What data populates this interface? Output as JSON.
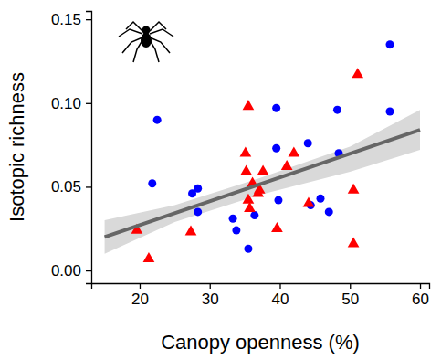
{
  "chart_data": {
    "type": "scatter",
    "x_label": "Canopy openness (%)",
    "y_label": "Isotopic richness",
    "xlim": [
      13.1,
      61.3
    ],
    "ylim": [
      -0.0076,
      0.155
    ],
    "xticks": [
      20,
      30,
      40,
      50,
      60
    ],
    "yticks": [
      {
        "value": 0,
        "label": "0.00"
      },
      {
        "value": 0.05,
        "label": "0.05"
      },
      {
        "value": 0.1,
        "label": "0.10"
      },
      {
        "value": 0.15,
        "label": "0.15"
      }
    ],
    "grid": false,
    "series": [
      {
        "color": "#0000ff",
        "marker": "circle",
        "x": [
          22.5,
          21.8,
          27.5,
          28.3,
          28.3,
          33.3,
          33.8,
          35.5,
          36.4,
          39.5,
          39.5,
          39.8,
          44.0,
          44.4,
          45.8,
          47.0,
          48.2,
          48.4,
          55.7,
          55.7
        ],
        "values": [
          0.09,
          0.052,
          0.046,
          0.049,
          0.035,
          0.031,
          0.024,
          0.013,
          0.033,
          0.097,
          0.073,
          0.042,
          0.076,
          0.039,
          0.043,
          0.035,
          0.096,
          0.07,
          0.135,
          0.095
        ]
      },
      {
        "color": "#ff0000",
        "marker": "triangle",
        "x": [
          19.6,
          21.3,
          27.3,
          35.5,
          35.1,
          35.2,
          36.1,
          35.5,
          35.7,
          36.9,
          37.1,
          37.6,
          39.6,
          41.0,
          42.0,
          44.1,
          50.5,
          50.5,
          51.1
        ],
        "values": [
          0.024,
          0.007,
          0.023,
          0.098,
          0.07,
          0.059,
          0.052,
          0.042,
          0.037,
          0.046,
          0.048,
          0.059,
          0.025,
          0.062,
          0.07,
          0.04,
          0.048,
          0.016,
          0.117
        ]
      }
    ],
    "fit": {
      "type": "line",
      "color": "#666666",
      "x": [
        15,
        60
      ],
      "values": [
        0.02,
        0.084
      ]
    },
    "band": {
      "type": "area",
      "color": "#d9d9d9",
      "x": [
        15,
        25,
        37,
        50,
        60
      ],
      "lower": [
        0.01,
        0.029,
        0.045,
        0.059,
        0.072
      ],
      "upper": [
        0.03,
        0.039,
        0.055,
        0.074,
        0.096
      ]
    }
  }
}
